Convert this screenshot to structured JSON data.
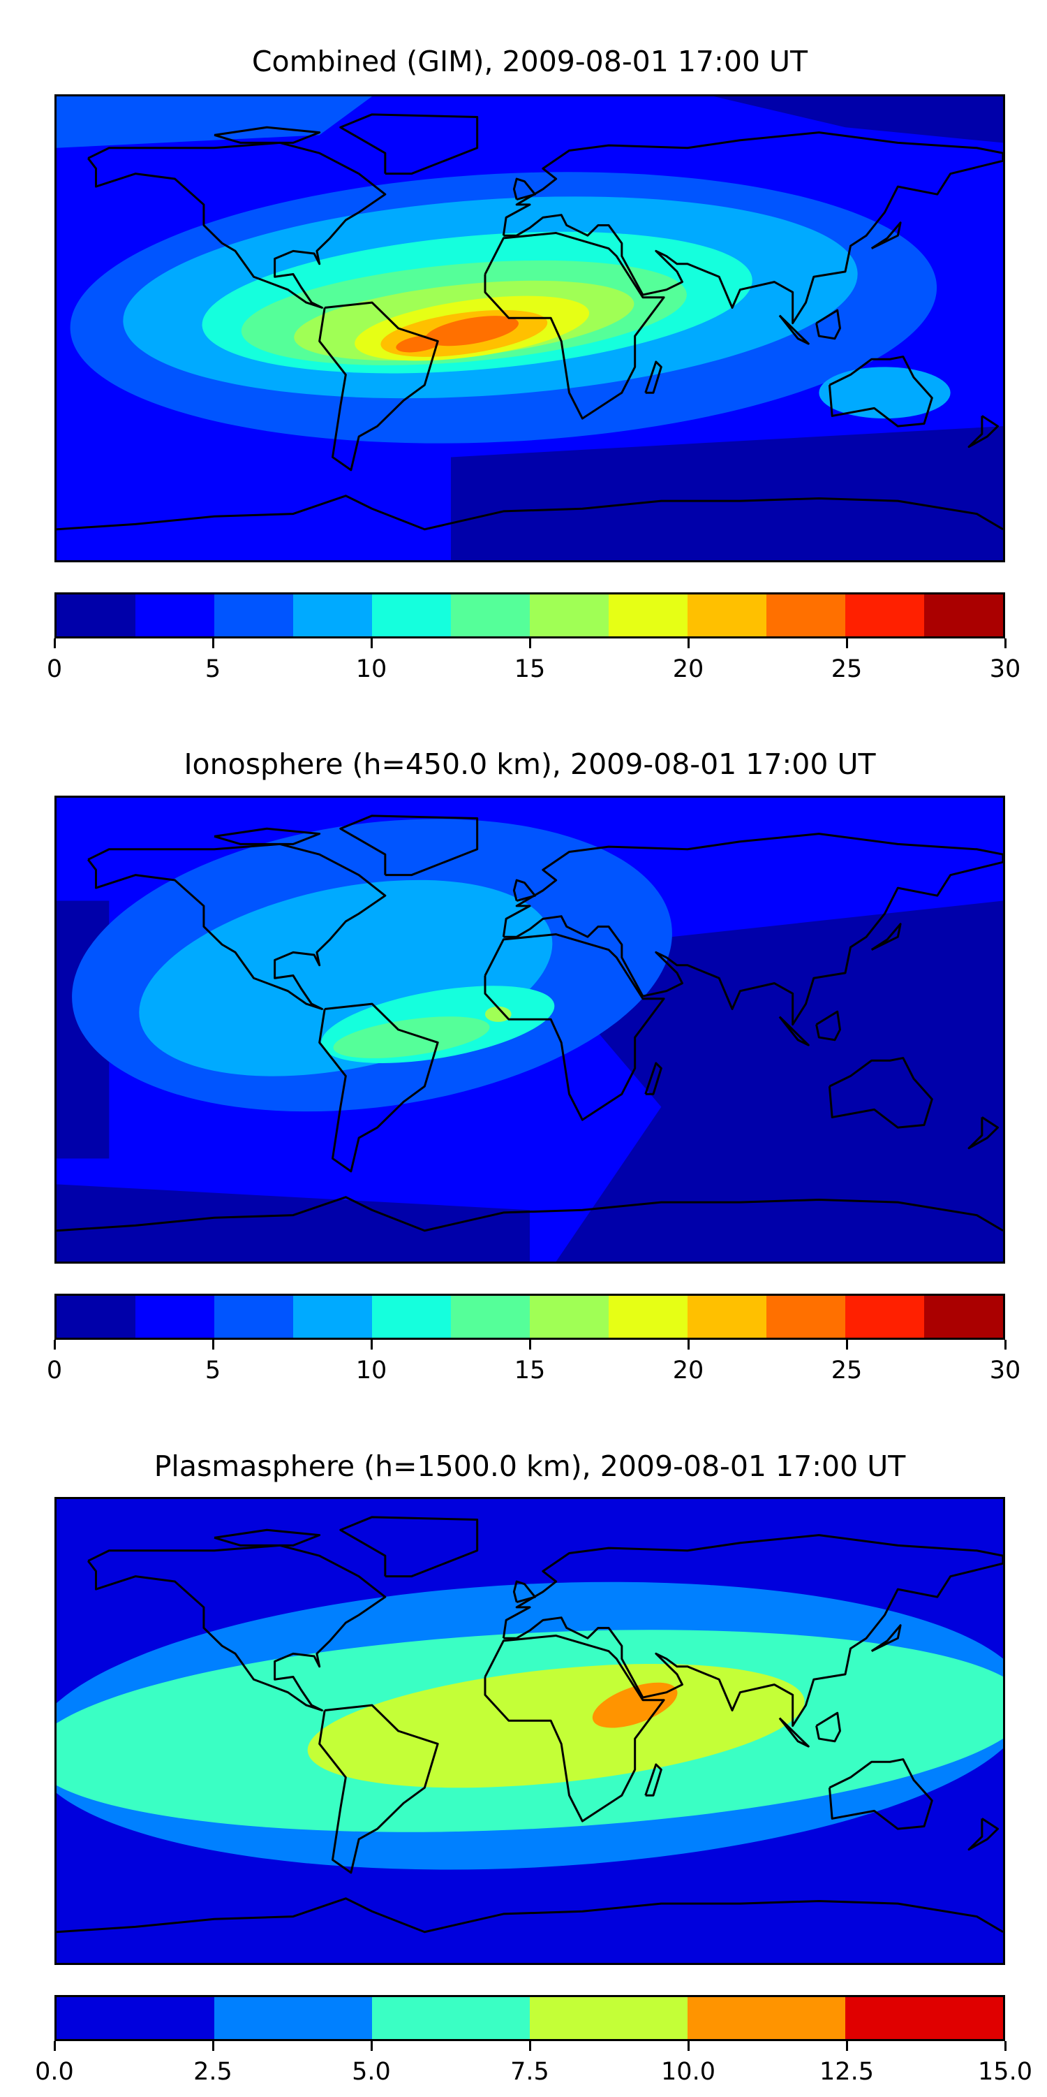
{
  "chart_data": [
    {
      "type": "heatmap",
      "title": "Combined (GIM), 2009-08-01 17:00 UT",
      "levels": [
        0,
        2.5,
        5,
        7.5,
        10,
        12.5,
        15,
        17.5,
        20,
        22.5,
        25,
        27.5,
        30
      ],
      "colors": [
        "#0000aa",
        "#0000ff",
        "#0055ff",
        "#00aaff",
        "#15ffdd",
        "#55ff99",
        "#a0ff55",
        "#e6ff15",
        "#ffc000",
        "#ff7000",
        "#ff2000",
        "#aa0000"
      ],
      "ticks": [
        "0",
        "5",
        "10",
        "15",
        "20",
        "25",
        "30"
      ],
      "range": [
        0,
        30
      ],
      "peak_region": "Atlantic / South America, ~22.5-25"
    },
    {
      "type": "heatmap",
      "title": "Ionosphere  (h=450.0 km), 2009-08-01 17:00 UT",
      "levels": [
        0,
        2.5,
        5,
        7.5,
        10,
        12.5,
        15,
        17.5,
        20,
        22.5,
        25,
        27.5,
        30
      ],
      "colors": [
        "#0000aa",
        "#0000ff",
        "#0055ff",
        "#00aaff",
        "#15ffdd",
        "#55ff99",
        "#a0ff55",
        "#e6ff15",
        "#ffc000",
        "#ff7000",
        "#ff2000",
        "#aa0000"
      ],
      "ticks": [
        "0",
        "5",
        "10",
        "15",
        "20",
        "25",
        "30"
      ],
      "range": [
        0,
        30
      ],
      "peak_region": "Tropical Atlantic, ~15-17.5"
    },
    {
      "type": "heatmap",
      "title": "Plasmasphere (h=1500.0 km), 2009-08-01 17:00 UT",
      "levels": [
        0,
        2.5,
        5,
        7.5,
        10,
        12.5,
        15
      ],
      "colors": [
        "#0000dd",
        "#0080ff",
        "#3affc4",
        "#c4ff37",
        "#ff9400",
        "#e00000"
      ],
      "ticks": [
        "0.0",
        "2.5",
        "5.0",
        "7.5",
        "10.0",
        "12.5",
        "15.0"
      ],
      "range": [
        0,
        15
      ],
      "peak_region": "East Africa, ~10-12.5"
    }
  ]
}
